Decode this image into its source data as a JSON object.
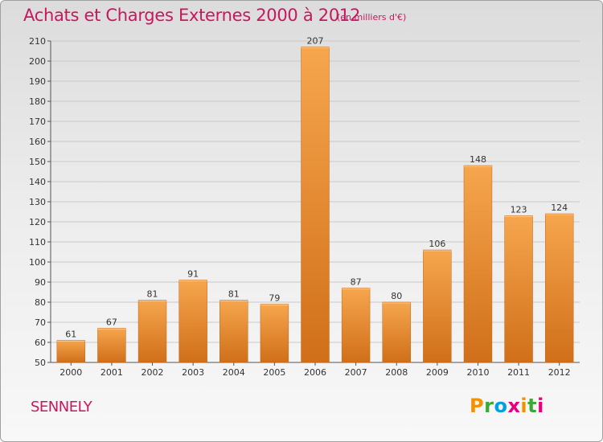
{
  "title": "Achats et Charges Externes 2000 à 2012",
  "subtitle": "(en milliers d'€)",
  "commune": "SENNELY",
  "logo": {
    "letters": [
      "P",
      "r",
      "o",
      "x",
      "i",
      "t",
      "i"
    ],
    "colors": [
      "#f39200",
      "#3aaa35",
      "#009fe3",
      "#e6007e",
      "#f39200",
      "#3aaa35",
      "#e6007e"
    ]
  },
  "colors": {
    "title": "#c8175d",
    "bar_light": "#f6a64e",
    "bar_dark": "#d06f19"
  },
  "chart_data": {
    "type": "bar",
    "categories": [
      "2000",
      "2001",
      "2002",
      "2003",
      "2004",
      "2005",
      "2006",
      "2007",
      "2008",
      "2009",
      "2010",
      "2011",
      "2012"
    ],
    "values": [
      61,
      67,
      81,
      91,
      81,
      79,
      207,
      87,
      80,
      106,
      148,
      123,
      124
    ],
    "ylim": [
      50,
      210
    ],
    "yticks": [
      50,
      60,
      70,
      80,
      90,
      100,
      110,
      120,
      130,
      140,
      150,
      160,
      170,
      180,
      190,
      200,
      210
    ],
    "grid": true,
    "data_labels": true
  }
}
